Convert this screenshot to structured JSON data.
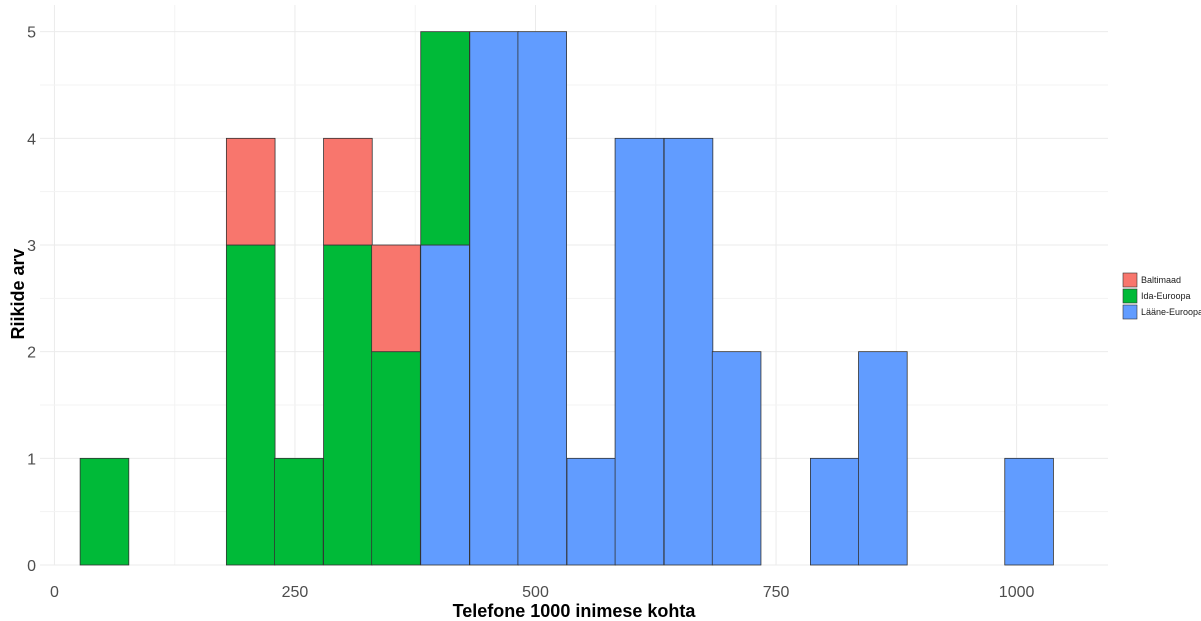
{
  "chart_data": {
    "type": "bar",
    "subtype": "stacked-histogram",
    "title": "",
    "xlabel": "Telefone 1000 inimese kohta",
    "ylabel": "Riikide arv",
    "xlim": [
      -15,
      1095
    ],
    "ylim": [
      0,
      5.25
    ],
    "x_ticks": [
      0,
      250,
      500,
      750,
      1000
    ],
    "x_tick_labels": [
      "0",
      "250",
      "500",
      "750",
      "1000"
    ],
    "y_ticks": [
      0,
      1,
      2,
      3,
      4,
      5
    ],
    "y_tick_labels": [
      "0",
      "1",
      "2",
      "3",
      "4",
      "5"
    ],
    "grid": true,
    "legend_position": "right",
    "bin_width": 50.6,
    "bin_centers": [
      52,
      103,
      153,
      204,
      254,
      305,
      355,
      406,
      457,
      507,
      558,
      608,
      659,
      709,
      760,
      811,
      861,
      912,
      962,
      1013
    ],
    "series": [
      {
        "name": "Baltimaad",
        "color": "#F8766D",
        "values": [
          0,
          0,
          0,
          1,
          0,
          1,
          1,
          0,
          0,
          0,
          0,
          0,
          0,
          0,
          0,
          0,
          0,
          0,
          0,
          0
        ]
      },
      {
        "name": "Ida-Euroopa",
        "color": "#00BA38",
        "values": [
          1,
          0,
          0,
          3,
          1,
          3,
          2,
          2,
          0,
          0,
          0,
          0,
          0,
          0,
          0,
          0,
          0,
          0,
          0,
          0
        ]
      },
      {
        "name": "Lääne-Euroopa",
        "color": "#619CFF",
        "values": [
          0,
          0,
          0,
          0,
          0,
          0,
          0,
          3,
          5,
          5,
          1,
          4,
          4,
          2,
          0,
          1,
          2,
          0,
          0,
          1
        ]
      }
    ]
  }
}
